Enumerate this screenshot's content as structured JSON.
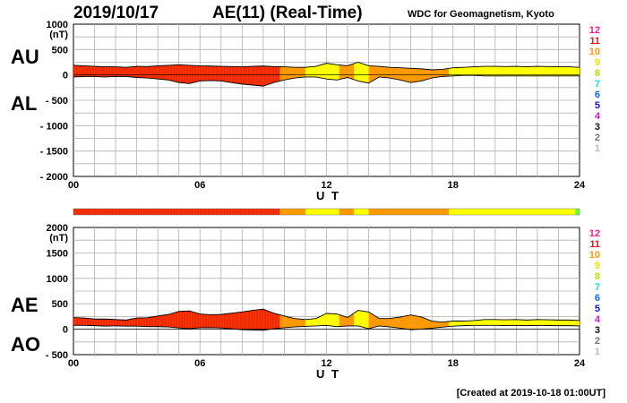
{
  "header": {
    "date": "2019/10/17",
    "title": "AE(11) (Real-Time)",
    "org": "WDC for Geomagnetism, Kyoto"
  },
  "footer": {
    "created": "[Created at 2019-10-18 01:00UT]"
  },
  "level_scale": {
    "labels": [
      "12",
      "11",
      "10",
      "9",
      "8",
      "7",
      "6",
      "5",
      "4",
      "3",
      "2",
      "1"
    ],
    "colors": [
      "#ff1a8c",
      "#ff1010",
      "#ff9900",
      "#f0e000",
      "#b8e000",
      "#20d8d8",
      "#1060ff",
      "#1010c0",
      "#c020d0",
      "#111111",
      "#777777",
      "#bbbbbb"
    ]
  },
  "colors": {
    "red": "#ff3300",
    "orange": "#ff9900",
    "yellow": "#ffff00",
    "green": "#66ff33"
  },
  "chart_data": [
    {
      "type": "area",
      "panel": "top",
      "series_labels": [
        "AU",
        "AL"
      ],
      "ylabel_unit": "(nT)",
      "xlabel": "U T",
      "xlim": [
        0,
        24
      ],
      "ylim": [
        -2000,
        1000
      ],
      "xticks": [
        "00",
        "06",
        "12",
        "18",
        "24"
      ],
      "yticks": [
        "1000",
        "500",
        "0",
        "- 500",
        "- 1000",
        "- 1500",
        "- 2000"
      ],
      "grid": true,
      "x_hours": [
        0,
        0.5,
        1,
        1.5,
        2,
        2.5,
        3,
        3.5,
        4,
        4.5,
        5,
        5.5,
        6,
        6.5,
        7,
        7.5,
        8,
        8.5,
        9,
        9.5,
        10,
        10.5,
        11,
        11.5,
        12,
        12.5,
        13,
        13.5,
        14,
        14.5,
        15,
        15.5,
        16,
        16.5,
        17,
        17.5,
        18,
        18.5,
        19,
        19.5,
        20,
        20.5,
        21,
        21.5,
        22,
        22.5,
        23,
        23.5,
        24
      ],
      "AU": [
        190,
        180,
        170,
        160,
        160,
        150,
        170,
        165,
        180,
        190,
        200,
        190,
        180,
        175,
        170,
        165,
        160,
        170,
        175,
        165,
        160,
        150,
        150,
        170,
        230,
        200,
        180,
        250,
        180,
        170,
        150,
        140,
        130,
        120,
        100,
        110,
        140,
        150,
        160,
        170,
        170,
        165,
        170,
        160,
        170,
        165,
        160,
        160,
        150
      ],
      "AL": [
        -40,
        -30,
        -30,
        -40,
        -30,
        -30,
        -50,
        -60,
        -80,
        -100,
        -150,
        -170,
        -120,
        -110,
        -120,
        -150,
        -180,
        -200,
        -220,
        -150,
        -100,
        -60,
        -40,
        -40,
        -80,
        -100,
        -50,
        -120,
        -160,
        -40,
        -60,
        -100,
        -150,
        -120,
        -60,
        -30,
        -20,
        -10,
        -10,
        -20,
        -20,
        -20,
        -20,
        -20,
        -20,
        -20,
        -20,
        -20,
        -20
      ],
      "activity_segments": [
        {
          "from": 0,
          "to": 9.8,
          "level": "red"
        },
        {
          "from": 9.8,
          "to": 11,
          "level": "orange"
        },
        {
          "from": 11,
          "to": 12.6,
          "level": "yellow"
        },
        {
          "from": 12.6,
          "to": 13.3,
          "level": "orange"
        },
        {
          "from": 13.3,
          "to": 14,
          "level": "yellow"
        },
        {
          "from": 14,
          "to": 17.8,
          "level": "orange"
        },
        {
          "from": 17.8,
          "to": 24,
          "level": "yellow"
        }
      ]
    },
    {
      "type": "area",
      "panel": "bottom",
      "series_labels": [
        "AE",
        "AO"
      ],
      "ylabel_unit": "(nT)",
      "xlabel": "U T",
      "xlim": [
        0,
        24
      ],
      "ylim": [
        -500,
        2000
      ],
      "xticks": [
        "00",
        "06",
        "12",
        "18",
        "24"
      ],
      "yticks": [
        "2000",
        "1500",
        "1000",
        "500",
        "0",
        "- 500"
      ],
      "grid": true,
      "x_hours": [
        0,
        0.5,
        1,
        1.5,
        2,
        2.5,
        3,
        3.5,
        4,
        4.5,
        5,
        5.5,
        6,
        6.5,
        7,
        7.5,
        8,
        8.5,
        9,
        9.5,
        10,
        10.5,
        11,
        11.5,
        12,
        12.5,
        13,
        13.5,
        14,
        14.5,
        15,
        15.5,
        16,
        16.5,
        17,
        17.5,
        18,
        18.5,
        19,
        19.5,
        20,
        20.5,
        21,
        21.5,
        22,
        22.5,
        23,
        23.5,
        24
      ],
      "AE": [
        230,
        220,
        200,
        200,
        190,
        180,
        220,
        225,
        260,
        290,
        350,
        360,
        300,
        285,
        290,
        315,
        340,
        370,
        395,
        315,
        260,
        210,
        190,
        210,
        310,
        300,
        230,
        370,
        340,
        210,
        210,
        240,
        280,
        240,
        160,
        140,
        160,
        160,
        170,
        190,
        190,
        185,
        190,
        180,
        190,
        185,
        180,
        180,
        170
      ],
      "AO": [
        75,
        75,
        70,
        60,
        65,
        60,
        60,
        52,
        50,
        45,
        25,
        10,
        30,
        32,
        25,
        7,
        -10,
        -15,
        -22,
        7,
        30,
        45,
        55,
        65,
        75,
        50,
        65,
        65,
        10,
        65,
        45,
        20,
        -10,
        0,
        20,
        40,
        60,
        70,
        75,
        75,
        75,
        72,
        75,
        70,
        75,
        72,
        70,
        70,
        65
      ],
      "activity_segments": [
        {
          "from": 0,
          "to": 9.8,
          "level": "red"
        },
        {
          "from": 9.8,
          "to": 11,
          "level": "orange"
        },
        {
          "from": 11,
          "to": 12.6,
          "level": "yellow"
        },
        {
          "from": 12.6,
          "to": 13.3,
          "level": "orange"
        },
        {
          "from": 13.3,
          "to": 14,
          "level": "yellow"
        },
        {
          "from": 14,
          "to": 17.8,
          "level": "orange"
        },
        {
          "from": 17.8,
          "to": 24,
          "level": "yellow"
        }
      ]
    }
  ],
  "status_bar": [
    {
      "from": 0,
      "to": 9.8,
      "level": "red"
    },
    {
      "from": 9.8,
      "to": 11,
      "level": "orange"
    },
    {
      "from": 11,
      "to": 12.6,
      "level": "yellow"
    },
    {
      "from": 12.6,
      "to": 13.3,
      "level": "orange"
    },
    {
      "from": 13.3,
      "to": 14,
      "level": "yellow"
    },
    {
      "from": 14,
      "to": 17.8,
      "level": "orange"
    },
    {
      "from": 17.8,
      "to": 23.8,
      "level": "yellow"
    },
    {
      "from": 23.8,
      "to": 24,
      "level": "green"
    }
  ]
}
